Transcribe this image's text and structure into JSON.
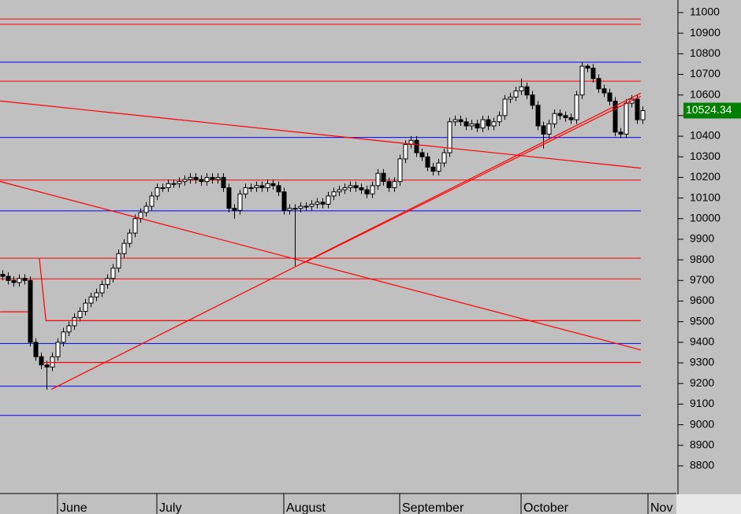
{
  "chart_data": {
    "type": "candlestick",
    "categories": [
      null,
      null,
      null,
      null,
      null,
      null,
      null,
      null,
      null,
      null,
      "June",
      null,
      null,
      null,
      null,
      null,
      null,
      null,
      null,
      null,
      null,
      null,
      null,
      null,
      null,
      null,
      null,
      null,
      "July",
      null,
      null,
      null,
      null,
      null,
      null,
      null,
      null,
      null,
      null,
      null,
      null,
      null,
      null,
      null,
      null,
      null,
      null,
      null,
      null,
      null,
      null,
      "August",
      null,
      null,
      null,
      null,
      null,
      null,
      null,
      null,
      null,
      null,
      null,
      null,
      null,
      null,
      null,
      null,
      null,
      null,
      null,
      null,
      "September",
      null,
      null,
      null,
      null,
      null,
      null,
      null,
      null,
      null,
      null,
      null,
      null,
      null,
      null,
      null,
      null,
      null,
      null,
      null,
      null,
      null,
      "October",
      null,
      null,
      null,
      null,
      null,
      null,
      null,
      null,
      null,
      null,
      null,
      null,
      null,
      null,
      null,
      null,
      null,
      null,
      null,
      null,
      null,
      null,
      "Nov"
    ],
    "open": [
      9730,
      9720,
      9700,
      9690,
      9710,
      9700,
      9400,
      9330,
      9290,
      9280,
      9330,
      9400,
      9450,
      9480,
      9520,
      9550,
      9590,
      9620,
      9640,
      9680,
      9710,
      9760,
      9830,
      9880,
      9930,
      10000,
      10030,
      10060,
      10110,
      10150,
      10150,
      10170,
      10170,
      10180,
      10190,
      10200,
      10190,
      10180,
      10200,
      10190,
      10200,
      10150,
      10050,
      10040,
      10120,
      10150,
      10150,
      10160,
      10150,
      10170,
      10160,
      10130,
      10040,
      10050,
      10050,
      10060,
      10060,
      10070,
      10080,
      10070,
      10110,
      10130,
      10140,
      10150,
      10160,
      10150,
      10140,
      10120,
      10160,
      10220,
      10180,
      10150,
      10180,
      10290,
      10360,
      10380,
      10320,
      10300,
      10250,
      10230,
      10270,
      10320,
      10470,
      10480,
      10470,
      10450,
      10460,
      10440,
      10480,
      10450,
      10470,
      10500,
      10580,
      10590,
      10620,
      10640,
      10600,
      10550,
      10450,
      10410,
      10460,
      10510,
      10500,
      10490,
      10480,
      10600,
      10740,
      10730,
      10680,
      10630,
      10610,
      10570,
      10420,
      10410,
      10560,
      10580,
      10480,
      null
    ],
    "high": [
      9750,
      9740,
      9720,
      9730,
      9730,
      9720,
      9420,
      9350,
      9310,
      9350,
      9420,
      9470,
      9500,
      9540,
      9570,
      9610,
      9640,
      9660,
      9700,
      9730,
      9780,
      9850,
      9900,
      9950,
      10020,
      10050,
      10080,
      10130,
      10170,
      10170,
      10190,
      10190,
      10200,
      10210,
      10220,
      10220,
      10210,
      10220,
      10220,
      10220,
      10220,
      10170,
      10070,
      10140,
      10170,
      10170,
      10180,
      10180,
      10190,
      10190,
      10180,
      10150,
      10070,
      10070,
      10080,
      10080,
      10090,
      10100,
      10100,
      10130,
      10150,
      10160,
      10170,
      10180,
      10180,
      10170,
      10160,
      10180,
      10240,
      10240,
      10200,
      10200,
      10310,
      10380,
      10400,
      10400,
      10340,
      10320,
      10270,
      10290,
      10340,
      10490,
      10500,
      10500,
      10490,
      10480,
      10480,
      10500,
      10500,
      10490,
      10520,
      10600,
      10610,
      10640,
      10680,
      10660,
      10620,
      10570,
      10470,
      10480,
      10530,
      10530,
      10520,
      10510,
      10620,
      10760,
      10750,
      10750,
      10700,
      10650,
      10630,
      10590,
      10440,
      10580,
      10600,
      10600,
      10545,
      null
    ],
    "low": [
      9700,
      9680,
      9670,
      9670,
      9680,
      9380,
      9310,
      9270,
      9170,
      9260,
      9310,
      9380,
      9430,
      9460,
      9500,
      9530,
      9570,
      9600,
      9620,
      9660,
      9690,
      9740,
      9810,
      9860,
      9910,
      9980,
      10010,
      10040,
      10090,
      10130,
      10130,
      10150,
      10150,
      10160,
      10170,
      10170,
      10160,
      10160,
      10170,
      10170,
      10130,
      10030,
      10000,
      10020,
      10100,
      10130,
      10130,
      10130,
      10130,
      10140,
      10110,
      10020,
      10020,
      9770,
      10030,
      10040,
      10040,
      10050,
      10050,
      10050,
      10090,
      10110,
      10120,
      10130,
      10130,
      10120,
      10100,
      10100,
      10140,
      10160,
      10130,
      10130,
      10160,
      10270,
      10340,
      10300,
      10280,
      10230,
      10210,
      10210,
      10250,
      10300,
      10450,
      10450,
      10430,
      10430,
      10420,
      10420,
      10430,
      10430,
      10450,
      10480,
      10560,
      10570,
      10600,
      10580,
      10530,
      10430,
      10340,
      10390,
      10440,
      10480,
      10470,
      10460,
      10460,
      10580,
      10710,
      10660,
      10610,
      10590,
      10550,
      10400,
      10390,
      10390,
      10540,
      10460,
      10460,
      null
    ],
    "close": [
      9720,
      9700,
      9690,
      9710,
      9700,
      9400,
      9330,
      9290,
      9280,
      9330,
      9400,
      9450,
      9480,
      9520,
      9550,
      9590,
      9620,
      9640,
      9680,
      9710,
      9760,
      9830,
      9880,
      9930,
      10000,
      10030,
      10060,
      10110,
      10150,
      10150,
      10170,
      10170,
      10180,
      10190,
      10200,
      10190,
      10180,
      10200,
      10190,
      10200,
      10150,
      10050,
      10040,
      10120,
      10150,
      10150,
      10160,
      10150,
      10170,
      10160,
      10130,
      10040,
      10050,
      10050,
      10060,
      10060,
      10070,
      10080,
      10070,
      10110,
      10130,
      10140,
      10150,
      10160,
      10150,
      10140,
      10120,
      10160,
      10220,
      10180,
      10150,
      10180,
      10290,
      10360,
      10380,
      10320,
      10300,
      10250,
      10230,
      10270,
      10320,
      10470,
      10480,
      10470,
      10450,
      10460,
      10440,
      10480,
      10450,
      10470,
      10500,
      10580,
      10590,
      10620,
      10640,
      10600,
      10550,
      10450,
      10410,
      10460,
      10510,
      10500,
      10490,
      10480,
      10600,
      10740,
      10730,
      10680,
      10630,
      10610,
      10570,
      10420,
      10410,
      10560,
      10580,
      10480,
      10524.34,
      null
    ],
    "up_color": "#ffffff",
    "down_color": "#000000",
    "last_price": 10524.34,
    "ylim": [
      8666,
      11061
    ],
    "yticks": [
      8800,
      8900,
      9000,
      9100,
      9200,
      9300,
      9400,
      9500,
      9600,
      9700,
      9800,
      9900,
      10000,
      10100,
      10200,
      10300,
      10400,
      10500,
      10600,
      10700,
      10800,
      10900,
      11000
    ],
    "levels": [
      {
        "value": 10969,
        "color": "#ff0000"
      },
      {
        "value": 10943,
        "color": "#ff0000"
      },
      {
        "value": 10759,
        "color": "#0000ff"
      },
      {
        "value": 10667,
        "color": "#ff0000"
      },
      {
        "value": 10394,
        "color": "#0000ff"
      },
      {
        "value": 10187,
        "color": "#ff0000"
      },
      {
        "value": 10038,
        "color": "#0000ff"
      },
      {
        "value": 9808,
        "color": "#ff0000"
      },
      {
        "value": 9708,
        "color": "#ff0000"
      },
      {
        "value": 9394,
        "color": "#0000ff"
      },
      {
        "value": 9187,
        "color": "#0000ff"
      },
      {
        "value": 9045,
        "color": "#0000ff"
      }
    ],
    "trendlines": [
      {
        "color": "#ff0000",
        "x": [
          -0.4,
          115.7
        ],
        "y": [
          10571,
          10245
        ]
      },
      {
        "color": "#ff0000",
        "x": [
          -0.4,
          115.7
        ],
        "y": [
          10180,
          9363
        ]
      },
      {
        "color": "#ff0000",
        "x": [
          8.9,
          115.7
        ],
        "y": [
          9172,
          10609
        ]
      },
      {
        "color": "#ff0000",
        "x": [
          54.6,
          115.7
        ],
        "y": [
          9785,
          10594
        ]
      },
      {
        "color": "#ff0000",
        "x": [
          6.7,
          7.9,
          115.7
        ],
        "y": [
          9808,
          9505,
          9505
        ]
      },
      {
        "color": "#ff0000",
        "x": [
          -0.4,
          4.6
        ],
        "y": [
          9548,
          9548
        ]
      },
      {
        "color": "#ff0000",
        "x": [
          7.4,
          115.7
        ],
        "y": [
          9302,
          9302
        ]
      }
    ]
  }
}
